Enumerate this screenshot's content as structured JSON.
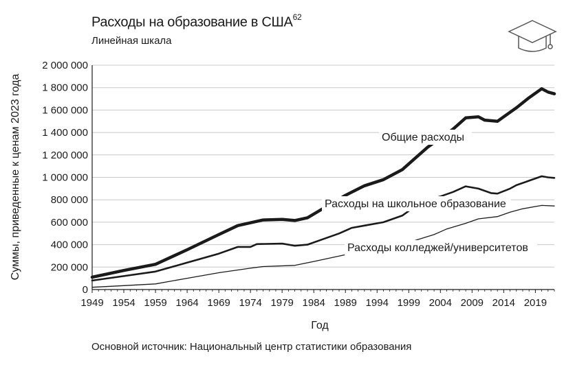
{
  "header": {
    "title": "Расходы на образование в США",
    "title_note": "62",
    "subtitle": "Линейная шкала"
  },
  "footer": {
    "source": "Основной источник: Национальный центр статистики образования"
  },
  "icon": "graduation-cap-icon",
  "chart_data": {
    "type": "line",
    "title": "Расходы на образование в США",
    "xlabel": "Год",
    "ylabel": "Суммы, приведенные к ценам 2023 года",
    "xlim": [
      1949,
      2022
    ],
    "ylim": [
      0,
      2000000
    ],
    "x_ticks": [
      1949,
      1954,
      1959,
      1964,
      1969,
      1974,
      1979,
      1984,
      1989,
      1994,
      1999,
      2004,
      2009,
      2014,
      2019
    ],
    "y_ticks": [
      0,
      200000,
      400000,
      600000,
      800000,
      1000000,
      1200000,
      1400000,
      1600000,
      1800000,
      2000000
    ],
    "y_tick_labels": [
      "0",
      "200 000",
      "400 000",
      "600 000",
      "800 000",
      "1 000 000",
      "1 200 000",
      "1 400 000",
      "1 600 000",
      "1 800 000",
      "2 000 000"
    ],
    "grid": "horizontal",
    "series": [
      {
        "name": "Общие расходы",
        "points": [
          [
            1949,
            110000
          ],
          [
            1954,
            170000
          ],
          [
            1959,
            225000
          ],
          [
            1964,
            355000
          ],
          [
            1969,
            490000
          ],
          [
            1972,
            570000
          ],
          [
            1974,
            595000
          ],
          [
            1976,
            620000
          ],
          [
            1979,
            625000
          ],
          [
            1981,
            615000
          ],
          [
            1983,
            640000
          ],
          [
            1986,
            740000
          ],
          [
            1989,
            840000
          ],
          [
            1992,
            925000
          ],
          [
            1995,
            980000
          ],
          [
            1998,
            1070000
          ],
          [
            2000,
            1170000
          ],
          [
            2002,
            1270000
          ],
          [
            2004,
            1350000
          ],
          [
            2006,
            1430000
          ],
          [
            2008,
            1530000
          ],
          [
            2010,
            1540000
          ],
          [
            2011,
            1510000
          ],
          [
            2013,
            1500000
          ],
          [
            2014,
            1540000
          ],
          [
            2016,
            1620000
          ],
          [
            2018,
            1710000
          ],
          [
            2020,
            1790000
          ],
          [
            2021,
            1760000
          ],
          [
            2022,
            1745000
          ]
        ]
      },
      {
        "name": "Расходы на школьное образование",
        "points": [
          [
            1949,
            80000
          ],
          [
            1954,
            120000
          ],
          [
            1959,
            160000
          ],
          [
            1964,
            240000
          ],
          [
            1969,
            320000
          ],
          [
            1972,
            380000
          ],
          [
            1974,
            380000
          ],
          [
            1975,
            405000
          ],
          [
            1979,
            410000
          ],
          [
            1981,
            390000
          ],
          [
            1983,
            400000
          ],
          [
            1986,
            460000
          ],
          [
            1988,
            500000
          ],
          [
            1990,
            550000
          ],
          [
            1992,
            570000
          ],
          [
            1995,
            600000
          ],
          [
            1998,
            660000
          ],
          [
            2000,
            740000
          ],
          [
            2002,
            800000
          ],
          [
            2004,
            830000
          ],
          [
            2006,
            870000
          ],
          [
            2008,
            920000
          ],
          [
            2010,
            900000
          ],
          [
            2012,
            860000
          ],
          [
            2013,
            855000
          ],
          [
            2015,
            900000
          ],
          [
            2016,
            930000
          ],
          [
            2018,
            970000
          ],
          [
            2020,
            1010000
          ],
          [
            2021,
            1000000
          ],
          [
            2022,
            995000
          ]
        ]
      },
      {
        "name": "Расходы колледжей/университетов",
        "points": [
          [
            1949,
            20000
          ],
          [
            1954,
            35000
          ],
          [
            1959,
            50000
          ],
          [
            1964,
            100000
          ],
          [
            1969,
            150000
          ],
          [
            1974,
            190000
          ],
          [
            1976,
            205000
          ],
          [
            1981,
            215000
          ],
          [
            1984,
            250000
          ],
          [
            1989,
            310000
          ],
          [
            1994,
            360000
          ],
          [
            1999,
            420000
          ],
          [
            2003,
            490000
          ],
          [
            2005,
            540000
          ],
          [
            2008,
            590000
          ],
          [
            2010,
            630000
          ],
          [
            2013,
            650000
          ],
          [
            2015,
            690000
          ],
          [
            2017,
            720000
          ],
          [
            2020,
            750000
          ],
          [
            2022,
            745000
          ]
        ]
      }
    ],
    "annotations": [
      {
        "text": "Общие расходы",
        "series": 0
      },
      {
        "text": "Расходы на школьное образование",
        "series": 1
      },
      {
        "text": "Расходы колледжей/университетов",
        "series": 2
      }
    ]
  }
}
